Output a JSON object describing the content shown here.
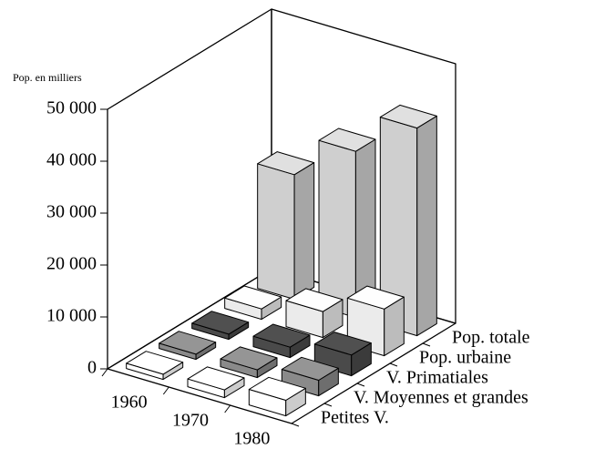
{
  "chart_data": {
    "type": "bar3d",
    "y_axis_label": "Pop. en milliers",
    "categories": [
      "1960",
      "1970",
      "1980"
    ],
    "series": [
      {
        "name": "Pop. totale",
        "color": "#cfcfcf",
        "values": [
          24000,
          32000,
          40000
        ]
      },
      {
        "name": "Pop. urbaine",
        "color": "#ebebeb",
        "values": [
          2000,
          5000,
          9000
        ]
      },
      {
        "name": "V. Primatiales",
        "color": "#4a4a4a",
        "values": [
          1000,
          2000,
          4000
        ]
      },
      {
        "name": "V. Moyennes et grandes",
        "color": "#8a8a8a",
        "values": [
          1000,
          1500,
          3000
        ]
      },
      {
        "name": "Petites V.",
        "color": "#ffffff",
        "values": [
          1000,
          1500,
          3000
        ]
      }
    ],
    "ylim": [
      0,
      50000
    ],
    "yticks": [
      0,
      {
        "value": 10000,
        "label": "10 000"
      },
      {
        "value": 20000,
        "label": "20 000"
      },
      {
        "value": 30000,
        "label": "30 000"
      },
      {
        "value": 40000,
        "label": "40 000"
      },
      {
        "value": 50000,
        "label": "50 000"
      }
    ]
  }
}
